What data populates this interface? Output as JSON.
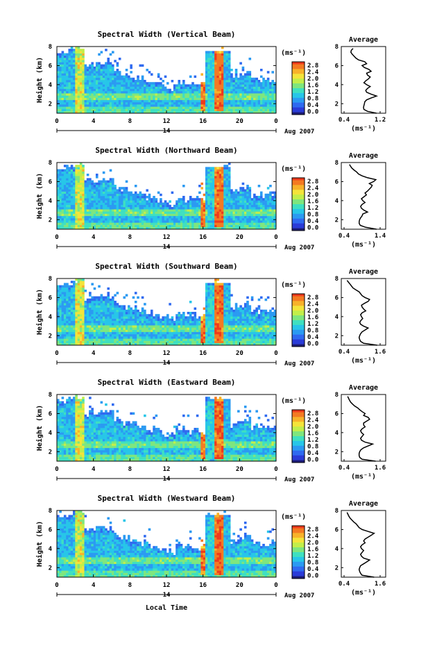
{
  "chart_data": {
    "xlabel": "Local Time",
    "date_label": "Aug 2007",
    "date_day": "14",
    "time_ticks": [
      "0",
      "4",
      "8",
      "12",
      "16",
      "20",
      "0"
    ],
    "height_ticks": [
      "2",
      "4",
      "6",
      "8"
    ],
    "ylabel": "Height (km)",
    "units": "(ms⁻¹)",
    "avg_title": "Average",
    "avg_ylim": [
      1,
      8
    ],
    "panels": [
      {
        "title": "Spectral Width (Vertical Beam)",
        "type": "heatmap",
        "colorbar_ticks": [
          "2.8",
          "2.4",
          "2.0",
          "1.6",
          "1.2",
          "0.8",
          "0.4",
          "0.0"
        ],
        "colorbar_range": [
          0.0,
          2.8
        ],
        "avg_xticks": [
          "0.4",
          "1.2"
        ],
        "avg_xlim": [
          0.4,
          1.2
        ],
        "avg_heights": [
          1.0,
          1.2,
          1.4,
          1.6,
          1.8,
          2.0,
          2.2,
          2.4,
          2.6,
          2.8,
          3.0,
          3.2,
          3.4,
          3.6,
          3.8,
          4.0,
          4.2,
          4.4,
          4.6,
          4.8,
          5.0,
          5.2,
          5.4,
          5.6,
          5.8,
          6.0,
          6.2,
          6.4,
          6.6,
          6.8,
          7.0,
          7.2,
          7.4,
          7.6,
          7.8
        ],
        "avg_values": [
          1.12,
          0.92,
          0.84,
          0.83,
          0.84,
          0.85,
          0.86,
          0.9,
          1.0,
          1.12,
          1.0,
          0.9,
          0.88,
          0.92,
          0.98,
          0.9,
          0.84,
          0.88,
          0.94,
          0.98,
          0.92,
          0.9,
          1.0,
          0.95,
          0.85,
          0.8,
          0.9,
          0.86,
          0.72,
          0.66,
          0.62,
          0.58,
          0.55,
          0.56,
          0.6
        ]
      },
      {
        "title": "Spectral Width (Northward Beam)",
        "type": "heatmap",
        "colorbar_ticks": [
          "2.8",
          "2.4",
          "2.0",
          "1.6",
          "1.2",
          "0.8",
          "0.4",
          "0.0"
        ],
        "colorbar_range": [
          0.0,
          2.8
        ],
        "avg_xticks": [
          "0.4",
          "1.4"
        ],
        "avg_xlim": [
          0.4,
          1.4
        ],
        "avg_heights": [
          1.0,
          1.2,
          1.4,
          1.6,
          1.8,
          2.0,
          2.2,
          2.4,
          2.6,
          2.8,
          3.0,
          3.2,
          3.4,
          3.6,
          3.8,
          4.0,
          4.2,
          4.4,
          4.6,
          4.8,
          5.0,
          5.2,
          5.4,
          5.6,
          5.8,
          6.0,
          6.2,
          6.4,
          6.6,
          6.8,
          7.0,
          7.2,
          7.4,
          7.6,
          7.8
        ],
        "avg_values": [
          1.3,
          1.0,
          0.85,
          0.82,
          0.82,
          0.83,
          0.86,
          0.9,
          0.92,
          1.05,
          0.95,
          0.88,
          0.86,
          0.9,
          0.98,
          0.92,
          0.88,
          0.95,
          1.02,
          0.98,
          1.05,
          1.1,
          1.15,
          1.18,
          1.1,
          1.22,
          1.28,
          1.05,
          0.9,
          0.8,
          0.75,
          0.68,
          0.62,
          0.58,
          0.55
        ]
      },
      {
        "title": "Spectral Width (Southward Beam)",
        "type": "heatmap",
        "colorbar_ticks": [
          "2.8",
          "2.4",
          "2.0",
          "1.6",
          "1.2",
          "0.8",
          "0.4",
          "0.0"
        ],
        "colorbar_range": [
          0.0,
          2.8
        ],
        "avg_xticks": [
          "0.4",
          "1.6"
        ],
        "avg_xlim": [
          0.4,
          1.6
        ],
        "avg_heights": [
          1.0,
          1.2,
          1.4,
          1.6,
          1.8,
          2.0,
          2.2,
          2.4,
          2.6,
          2.8,
          3.0,
          3.2,
          3.4,
          3.6,
          3.8,
          4.0,
          4.2,
          4.4,
          4.6,
          4.8,
          5.0,
          5.2,
          5.4,
          5.6,
          5.8,
          6.0,
          6.2,
          6.4,
          6.6,
          6.8,
          7.0,
          7.2,
          7.4,
          7.6,
          7.8
        ],
        "avg_values": [
          1.5,
          1.05,
          0.95,
          0.92,
          0.9,
          0.92,
          0.95,
          1.0,
          1.1,
          1.2,
          1.05,
          0.95,
          0.92,
          0.96,
          1.02,
          0.98,
          0.95,
          1.0,
          1.12,
          1.05,
          1.0,
          0.98,
          1.08,
          1.2,
          1.25,
          1.1,
          1.0,
          0.95,
          0.9,
          0.8,
          0.7,
          0.65,
          0.6,
          0.55,
          0.5
        ]
      },
      {
        "title": "Spectral Width (Eastward Beam)",
        "type": "heatmap",
        "colorbar_ticks": [
          "2.8",
          "2.4",
          "2.0",
          "1.6",
          "1.2",
          "0.8",
          "0.4",
          "0.0"
        ],
        "colorbar_range": [
          0.0,
          2.8
        ],
        "avg_xticks": [
          "0.4",
          "1.6"
        ],
        "avg_xlim": [
          0.4,
          1.6
        ],
        "avg_heights": [
          1.0,
          1.2,
          1.4,
          1.6,
          1.8,
          2.0,
          2.2,
          2.4,
          2.6,
          2.8,
          3.0,
          3.2,
          3.4,
          3.6,
          3.8,
          4.0,
          4.2,
          4.4,
          4.6,
          4.8,
          5.0,
          5.2,
          5.4,
          5.6,
          5.8,
          6.0,
          6.2,
          6.4,
          6.6,
          6.8,
          7.0,
          7.2,
          7.4,
          7.6,
          7.8
        ],
        "avg_values": [
          1.45,
          1.0,
          0.92,
          0.9,
          0.9,
          0.92,
          0.96,
          1.05,
          1.2,
          1.35,
          1.1,
          0.98,
          0.95,
          1.0,
          1.05,
          0.98,
          0.95,
          1.0,
          1.1,
          1.05,
          1.05,
          1.15,
          1.25,
          1.2,
          1.05,
          1.1,
          1.0,
          0.92,
          0.85,
          0.75,
          0.68,
          0.62,
          0.58,
          0.55,
          0.52
        ]
      },
      {
        "title": "Spectral Width (Westward Beam)",
        "type": "heatmap",
        "colorbar_ticks": [
          "2.8",
          "2.4",
          "2.0",
          "1.6",
          "1.2",
          "0.8",
          "0.4",
          "0.0"
        ],
        "colorbar_range": [
          0.0,
          2.8
        ],
        "avg_xticks": [
          "0.4",
          "1.6"
        ],
        "avg_xlim": [
          0.4,
          1.6
        ],
        "avg_heights": [
          1.0,
          1.2,
          1.4,
          1.6,
          1.8,
          2.0,
          2.2,
          2.4,
          2.6,
          2.8,
          3.0,
          3.2,
          3.4,
          3.6,
          3.8,
          4.0,
          4.2,
          4.4,
          4.6,
          4.8,
          5.0,
          5.2,
          5.4,
          5.6,
          5.8,
          6.0,
          6.2,
          6.4,
          6.6,
          6.8,
          7.0,
          7.2,
          7.4,
          7.6,
          7.8
        ],
        "avg_values": [
          1.4,
          1.0,
          0.95,
          0.92,
          0.9,
          0.92,
          0.95,
          1.05,
          1.15,
          1.25,
          1.05,
          0.98,
          0.95,
          1.0,
          1.05,
          0.98,
          0.95,
          1.0,
          1.1,
          1.05,
          1.1,
          1.2,
          1.3,
          1.4,
          1.2,
          1.0,
          0.9,
          0.85,
          0.8,
          0.72,
          0.66,
          0.6,
          0.56,
          0.53,
          0.5
        ]
      }
    ]
  }
}
